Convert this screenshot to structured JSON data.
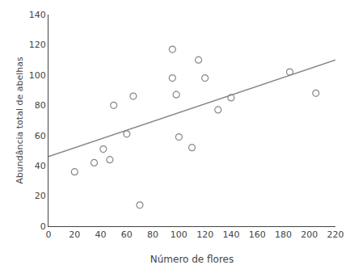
{
  "chart_data": {
    "type": "scatter",
    "xlabel": "Número de flores",
    "ylabel": "Abundância total de abelhas",
    "series": [
      {
        "type": "line",
        "color": "#888888",
        "x": [
          0,
          220
        ],
        "values": [
          46,
          110
        ]
      },
      {
        "type": "scatter",
        "color": "#888888",
        "marker": "circle-open",
        "x": [
          20,
          35,
          42,
          47,
          50,
          60,
          65,
          70,
          95,
          95,
          98,
          100,
          110,
          115,
          120,
          130,
          140,
          185,
          205
        ],
        "values": [
          36,
          42,
          51,
          44,
          80,
          61,
          86,
          14,
          117,
          98,
          87,
          59,
          52,
          110,
          98,
          77,
          85,
          102,
          88
        ]
      }
    ],
    "xlim": [
      0,
      220
    ],
    "ylim": [
      0,
      140
    ],
    "xticks": [
      0,
      20,
      40,
      60,
      80,
      100,
      120,
      140,
      160,
      180,
      200,
      220
    ],
    "yticks": [
      0,
      20,
      40,
      60,
      80,
      100,
      120,
      140
    ],
    "grid": false
  }
}
